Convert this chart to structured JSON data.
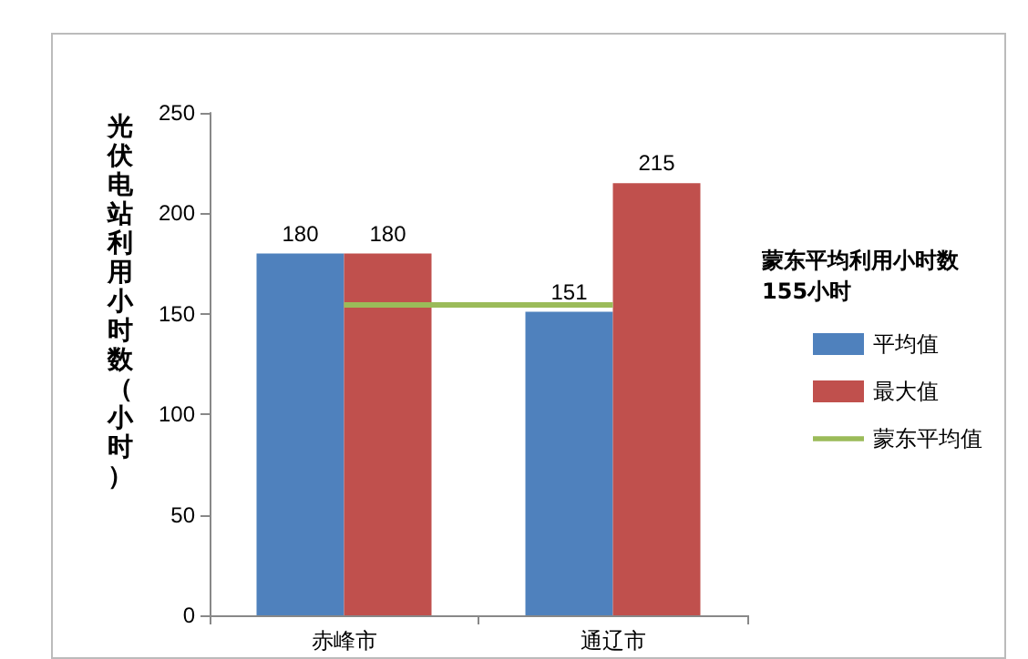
{
  "chart_data": {
    "type": "bar",
    "ylabel": "光伏电站利用小时数（小时）",
    "categories": [
      "赤峰市",
      "通辽市"
    ],
    "series": [
      {
        "name": "平均值",
        "color": "#4f81bd",
        "values": [
          180,
          151
        ]
      },
      {
        "name": "最大值",
        "color": "#c0504d",
        "values": [
          180,
          215
        ]
      }
    ],
    "ylim": [
      0,
      250
    ],
    "yticks": [
      0,
      50,
      100,
      150,
      200,
      250
    ],
    "grid": false,
    "legend": "right",
    "data_labels": true,
    "ref_lines": [
      {
        "axis": "y",
        "value": 155,
        "label": "蒙东平均值",
        "color": "#9bbb59",
        "line_style": "solid"
      }
    ],
    "annotations": [
      "蒙东平均利用小时数155小时"
    ]
  }
}
